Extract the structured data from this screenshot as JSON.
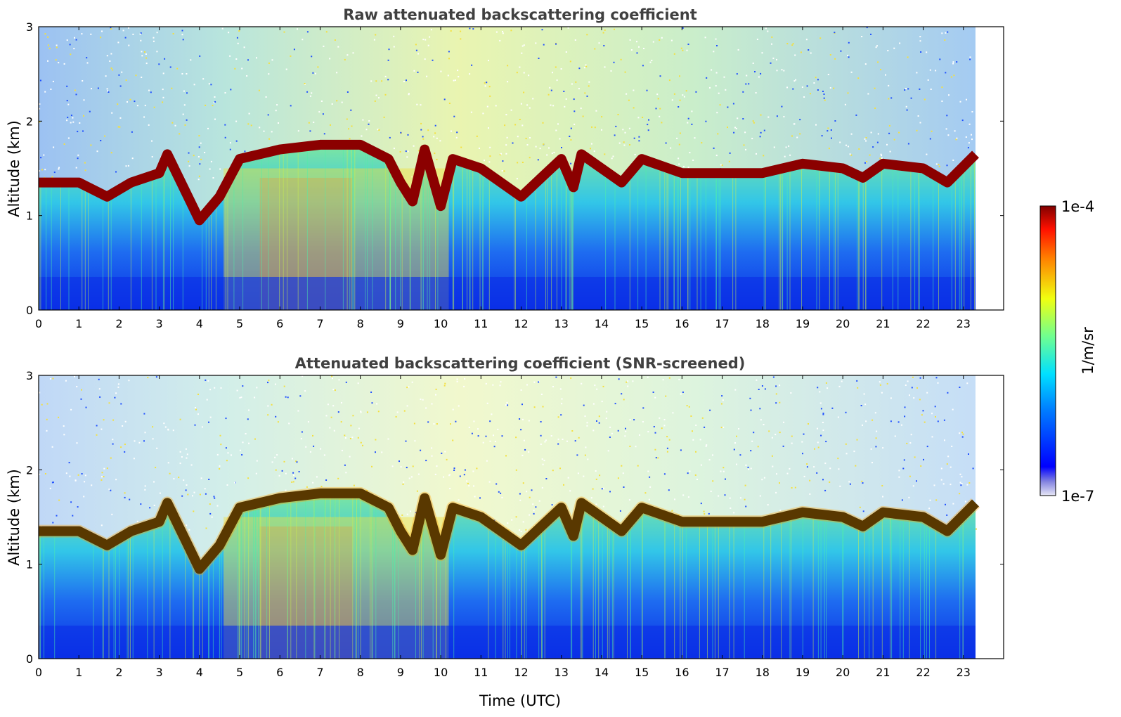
{
  "chart_data": [
    {
      "type": "heatmap",
      "title": "Raw attenuated backscattering coefficient",
      "xlabel": "",
      "ylabel": "Altitude (km)",
      "xlim": [
        0,
        24
      ],
      "ylim": [
        0,
        3
      ],
      "xticks": [
        "0",
        "1",
        "2",
        "3",
        "4",
        "5",
        "6",
        "7",
        "8",
        "9",
        "10",
        "11",
        "12",
        "13",
        "14",
        "15",
        "16",
        "17",
        "18",
        "19",
        "20",
        "21",
        "22",
        "23"
      ],
      "yticks": [
        "0",
        "1",
        "2",
        "3"
      ],
      "data_end_hour": 23.3,
      "boundary_layer_top_km": [
        {
          "x": 0,
          "y": 1.35
        },
        {
          "x": 1,
          "y": 1.35
        },
        {
          "x": 1.7,
          "y": 1.2
        },
        {
          "x": 2.3,
          "y": 1.35
        },
        {
          "x": 3.0,
          "y": 1.45
        },
        {
          "x": 3.2,
          "y": 1.65
        },
        {
          "x": 4.0,
          "y": 0.95
        },
        {
          "x": 4.5,
          "y": 1.2
        },
        {
          "x": 5.0,
          "y": 1.6
        },
        {
          "x": 6.0,
          "y": 1.7
        },
        {
          "x": 7.0,
          "y": 1.75
        },
        {
          "x": 8.0,
          "y": 1.75
        },
        {
          "x": 8.7,
          "y": 1.6
        },
        {
          "x": 9.0,
          "y": 1.35
        },
        {
          "x": 9.3,
          "y": 1.15
        },
        {
          "x": 9.6,
          "y": 1.7
        },
        {
          "x": 10.0,
          "y": 1.1
        },
        {
          "x": 10.3,
          "y": 1.6
        },
        {
          "x": 11.0,
          "y": 1.5
        },
        {
          "x": 12.0,
          "y": 1.2
        },
        {
          "x": 12.5,
          "y": 1.4
        },
        {
          "x": 13.0,
          "y": 1.6
        },
        {
          "x": 13.3,
          "y": 1.3
        },
        {
          "x": 13.5,
          "y": 1.65
        },
        {
          "x": 14.0,
          "y": 1.5
        },
        {
          "x": 14.5,
          "y": 1.35
        },
        {
          "x": 15.0,
          "y": 1.6
        },
        {
          "x": 16.0,
          "y": 1.45
        },
        {
          "x": 17.0,
          "y": 1.45
        },
        {
          "x": 18.0,
          "y": 1.45
        },
        {
          "x": 19.0,
          "y": 1.55
        },
        {
          "x": 20.0,
          "y": 1.5
        },
        {
          "x": 20.5,
          "y": 1.4
        },
        {
          "x": 21.0,
          "y": 1.55
        },
        {
          "x": 22.0,
          "y": 1.5
        },
        {
          "x": 22.6,
          "y": 1.35
        },
        {
          "x": 23.3,
          "y": 1.65
        }
      ]
    },
    {
      "type": "heatmap",
      "title": "Attenuated backscattering coefficient (SNR-screened)",
      "xlabel": "Time (UTC)",
      "ylabel": "Altitude (km)",
      "xlim": [
        0,
        24
      ],
      "ylim": [
        0,
        3
      ],
      "xticks": [
        "0",
        "1",
        "2",
        "3",
        "4",
        "5",
        "6",
        "7",
        "8",
        "9",
        "10",
        "11",
        "12",
        "13",
        "14",
        "15",
        "16",
        "17",
        "18",
        "19",
        "20",
        "21",
        "22",
        "23"
      ],
      "yticks": [
        "0",
        "1",
        "2",
        "3"
      ],
      "data_end_hour": 23.3,
      "boundary_layer_top_km": [
        {
          "x": 0,
          "y": 1.35
        },
        {
          "x": 1,
          "y": 1.35
        },
        {
          "x": 1.7,
          "y": 1.2
        },
        {
          "x": 2.3,
          "y": 1.35
        },
        {
          "x": 3.0,
          "y": 1.45
        },
        {
          "x": 3.2,
          "y": 1.65
        },
        {
          "x": 4.0,
          "y": 0.95
        },
        {
          "x": 4.5,
          "y": 1.2
        },
        {
          "x": 5.0,
          "y": 1.6
        },
        {
          "x": 6.0,
          "y": 1.7
        },
        {
          "x": 7.0,
          "y": 1.75
        },
        {
          "x": 8.0,
          "y": 1.75
        },
        {
          "x": 8.7,
          "y": 1.6
        },
        {
          "x": 9.0,
          "y": 1.35
        },
        {
          "x": 9.3,
          "y": 1.15
        },
        {
          "x": 9.6,
          "y": 1.7
        },
        {
          "x": 10.0,
          "y": 1.1
        },
        {
          "x": 10.3,
          "y": 1.6
        },
        {
          "x": 11.0,
          "y": 1.5
        },
        {
          "x": 12.0,
          "y": 1.2
        },
        {
          "x": 12.5,
          "y": 1.4
        },
        {
          "x": 13.0,
          "y": 1.6
        },
        {
          "x": 13.3,
          "y": 1.3
        },
        {
          "x": 13.5,
          "y": 1.65
        },
        {
          "x": 14.0,
          "y": 1.5
        },
        {
          "x": 14.5,
          "y": 1.35
        },
        {
          "x": 15.0,
          "y": 1.6
        },
        {
          "x": 16.0,
          "y": 1.45
        },
        {
          "x": 17.0,
          "y": 1.45
        },
        {
          "x": 18.0,
          "y": 1.45
        },
        {
          "x": 19.0,
          "y": 1.55
        },
        {
          "x": 20.0,
          "y": 1.5
        },
        {
          "x": 20.5,
          "y": 1.4
        },
        {
          "x": 21.0,
          "y": 1.55
        },
        {
          "x": 22.0,
          "y": 1.5
        },
        {
          "x": 22.6,
          "y": 1.35
        },
        {
          "x": 23.3,
          "y": 1.65
        }
      ]
    }
  ],
  "colorbar": {
    "label": "1/m/sr",
    "max_label": "1e-4",
    "min_label": "1e-7",
    "colormap": "jet",
    "scale": "log",
    "colors": [
      "#e6e6f5",
      "#0000cd",
      "#0050ff",
      "#00c8ff",
      "#55ffaa",
      "#e6ff30",
      "#ffa000",
      "#ff2800",
      "#800000"
    ]
  }
}
